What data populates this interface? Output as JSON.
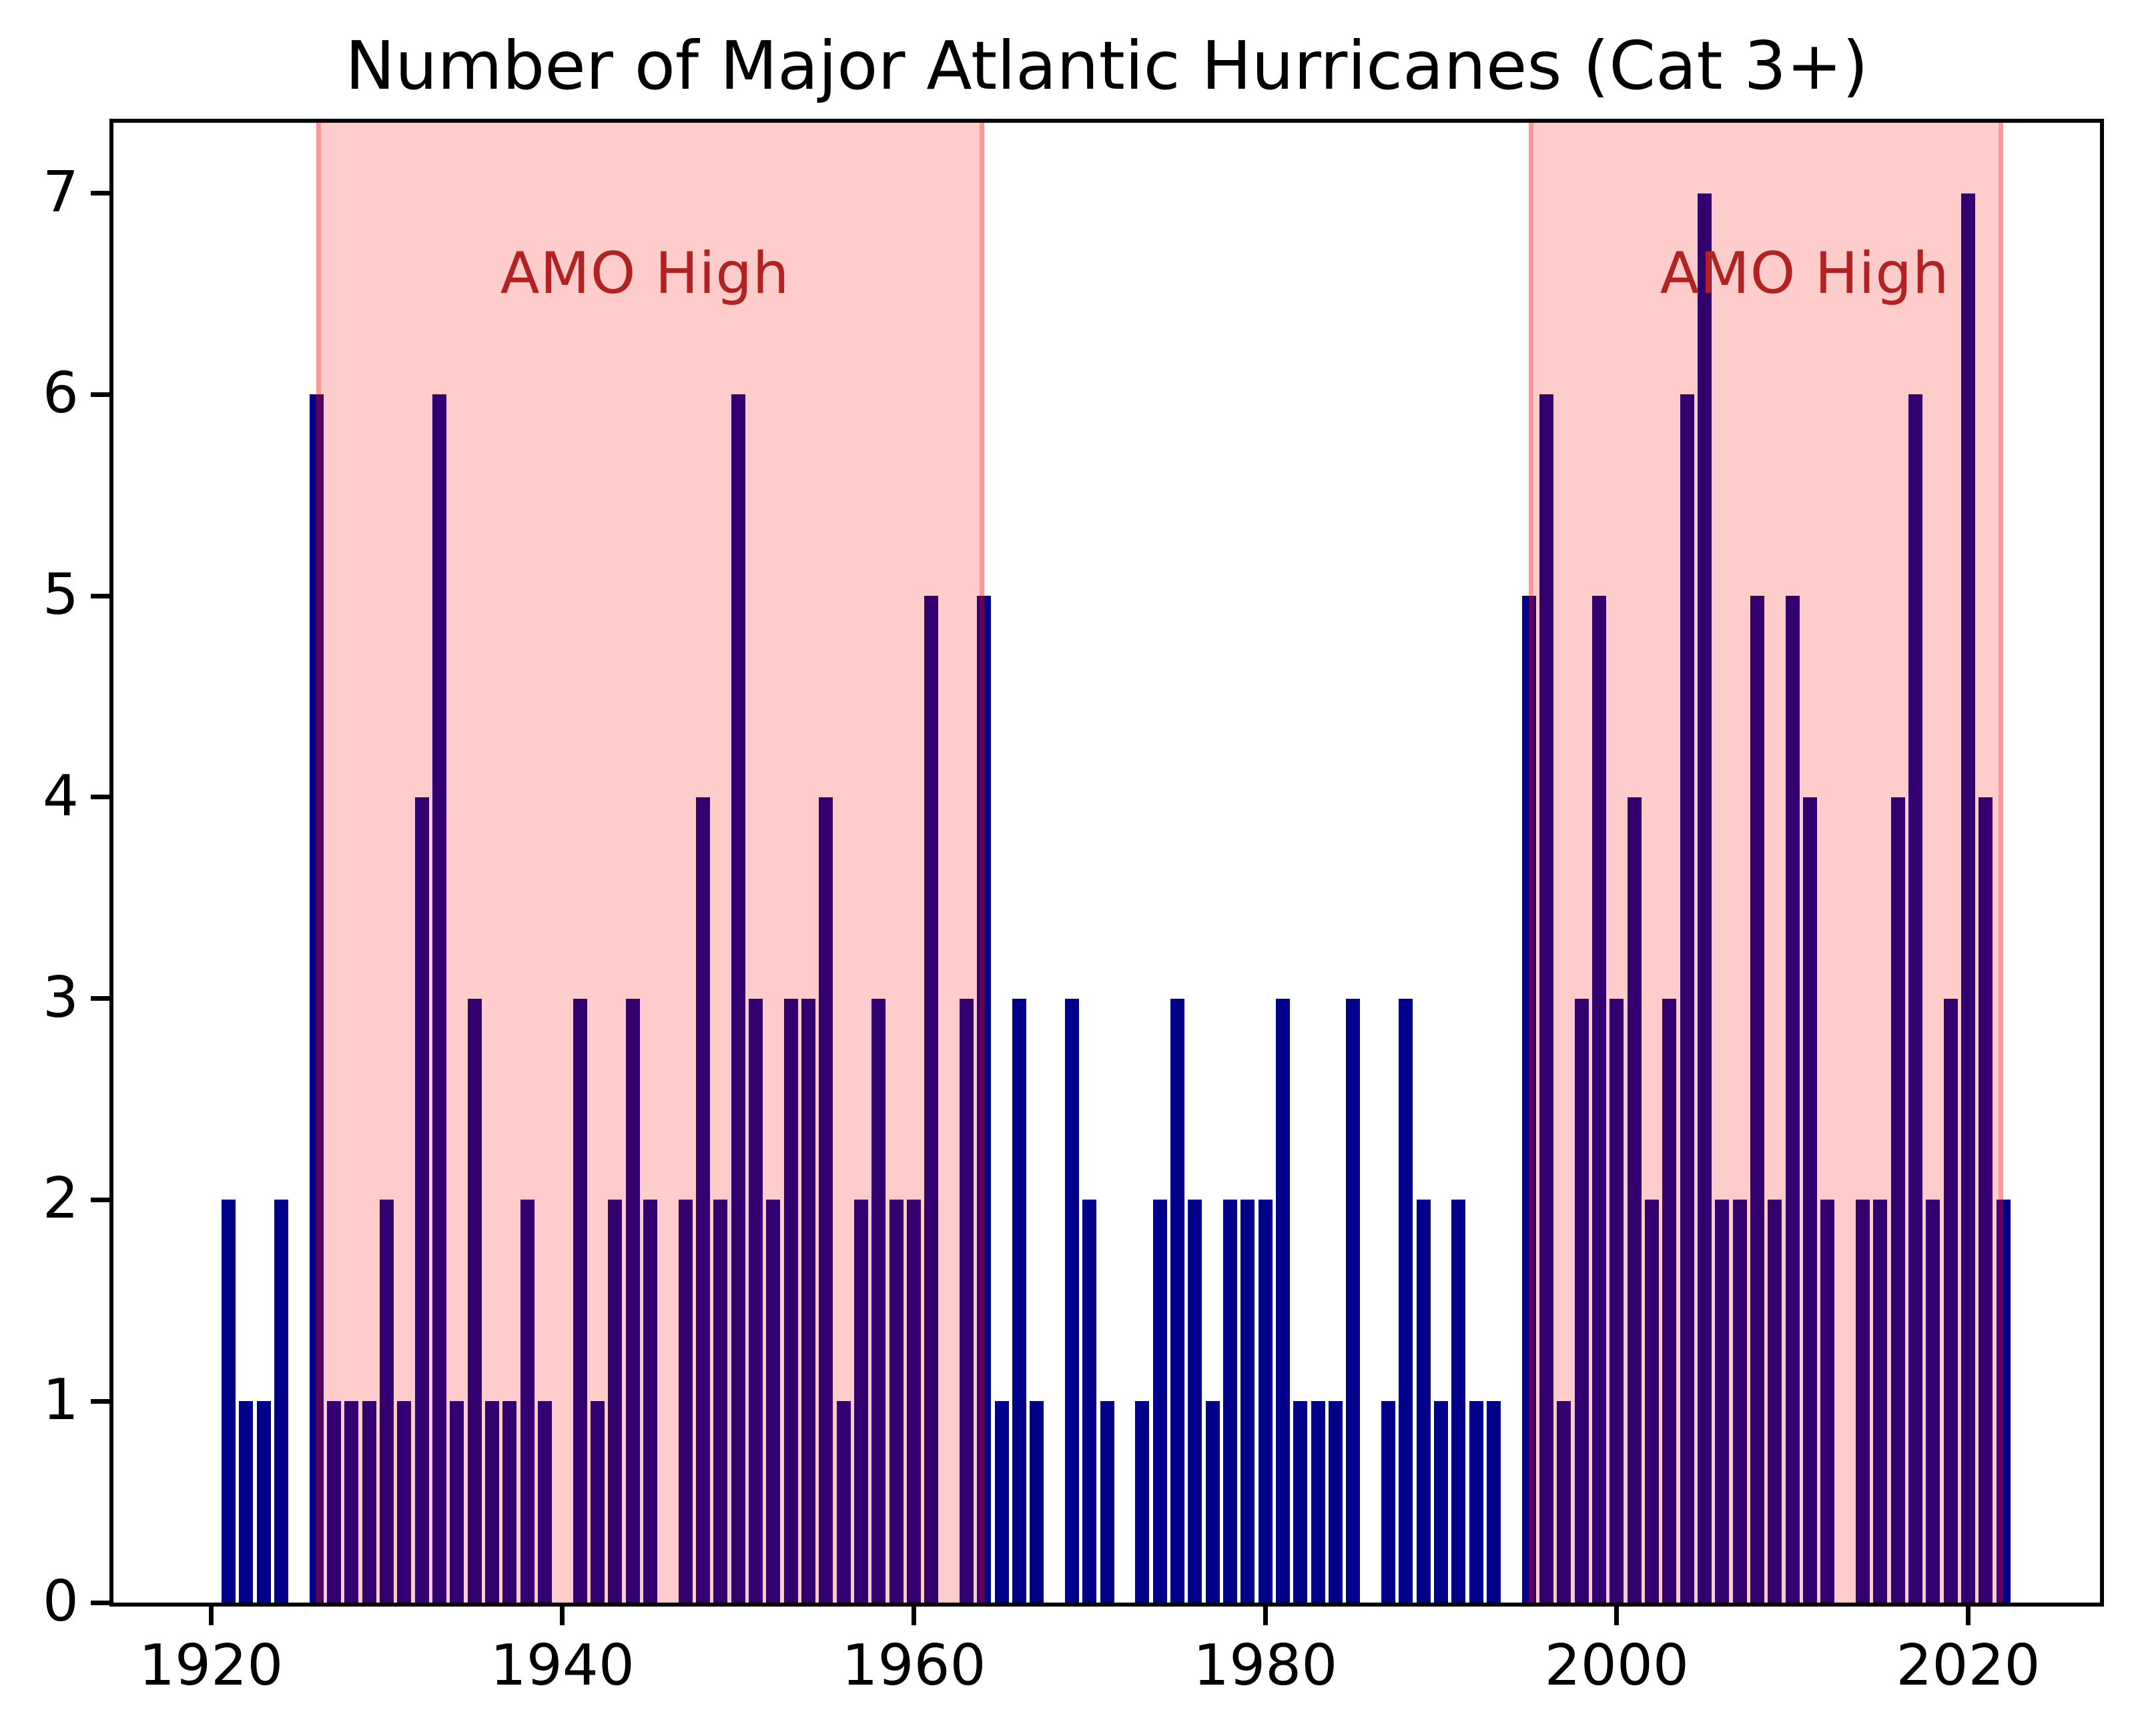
{
  "chart_data": {
    "type": "bar",
    "title": "Number of Major Atlantic Hurricanes (Cat 3+)",
    "xlabel": "",
    "ylabel": "",
    "start_year": 1921,
    "categories": [
      1921,
      1922,
      1923,
      1924,
      1925,
      1926,
      1927,
      1928,
      1929,
      1930,
      1931,
      1932,
      1933,
      1934,
      1935,
      1936,
      1937,
      1938,
      1939,
      1940,
      1941,
      1942,
      1943,
      1944,
      1945,
      1946,
      1947,
      1948,
      1949,
      1950,
      1951,
      1952,
      1953,
      1954,
      1955,
      1956,
      1957,
      1958,
      1959,
      1960,
      1961,
      1962,
      1963,
      1964,
      1965,
      1966,
      1967,
      1968,
      1969,
      1970,
      1971,
      1972,
      1973,
      1974,
      1975,
      1976,
      1977,
      1978,
      1979,
      1980,
      1981,
      1982,
      1983,
      1984,
      1985,
      1986,
      1987,
      1988,
      1989,
      1990,
      1991,
      1992,
      1993,
      1994,
      1995,
      1996,
      1997,
      1998,
      1999,
      2000,
      2001,
      2002,
      2003,
      2004,
      2005,
      2006,
      2007,
      2008,
      2009,
      2010,
      2011,
      2012,
      2013,
      2014,
      2015,
      2016,
      2017,
      2018,
      2019,
      2020,
      2021,
      2022
    ],
    "values": [
      2,
      1,
      1,
      2,
      0,
      6,
      1,
      1,
      1,
      2,
      1,
      4,
      6,
      1,
      3,
      1,
      1,
      2,
      1,
      0,
      3,
      1,
      2,
      3,
      2,
      0,
      2,
      4,
      2,
      6,
      3,
      2,
      3,
      3,
      4,
      1,
      2,
      3,
      2,
      2,
      5,
      0,
      3,
      5,
      1,
      3,
      1,
      0,
      3,
      2,
      1,
      0,
      1,
      2,
      3,
      2,
      1,
      2,
      2,
      2,
      3,
      1,
      1,
      1,
      3,
      0,
      1,
      3,
      2,
      1,
      2,
      1,
      1,
      0,
      5,
      6,
      1,
      3,
      5,
      3,
      4,
      2,
      3,
      6,
      7,
      2,
      2,
      5,
      2,
      5,
      4,
      2,
      0,
      2,
      2,
      4,
      6,
      2,
      3,
      7,
      4,
      2
    ],
    "bar_width_years": 0.8,
    "bar_color": "#00008B",
    "xticks": [
      1920,
      1940,
      1960,
      1980,
      2000,
      2020
    ],
    "yticks": [
      0,
      1,
      2,
      3,
      4,
      5,
      6,
      7
    ],
    "xlim": [
      1914.45,
      2027.5
    ],
    "ylim": [
      0,
      7.35
    ],
    "grid": false,
    "legend_position": "none",
    "shaded_regions": [
      {
        "start": 1926,
        "end": 1964,
        "label": "AMO High",
        "label_x": 1944.7,
        "label_y": 6.6
      },
      {
        "start": 1995,
        "end": 2022,
        "label": "AMO High",
        "label_x": 2010.7,
        "label_y": 6.6
      }
    ],
    "region_fill_color": "#FF0000",
    "region_fill_alpha": 0.2,
    "annotation_color": "#B22222",
    "axis_color": "#000000",
    "background_color": "#FFFFFF"
  }
}
